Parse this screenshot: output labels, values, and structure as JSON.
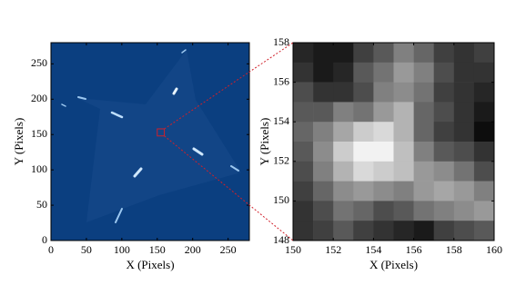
{
  "chart_data": [
    {
      "type": "image",
      "xlabel": "X (Pixels)",
      "ylabel": "Y (Pixels)",
      "color": "#0b3f80",
      "xlim": [
        0,
        280
      ],
      "ylim": [
        0,
        280
      ],
      "xticks": [
        0,
        50,
        100,
        150,
        200,
        250
      ],
      "yticks": [
        0,
        50,
        100,
        150,
        200,
        250
      ]
    },
    {
      "type": "heatmap",
      "xlabel": "X (Pixels)",
      "ylabel": "Y (Pixels)",
      "xlim": [
        150,
        160
      ],
      "ylim": [
        148,
        158
      ],
      "xticks": [
        150,
        152,
        154,
        156,
        158,
        160
      ],
      "yticks": [
        148,
        150,
        152,
        154,
        156,
        158
      ],
      "values": [
        [
          0.15,
          0.1,
          0.1,
          0.25,
          0.35,
          0.5,
          0.4,
          0.25,
          0.2,
          0.25
        ],
        [
          0.2,
          0.1,
          0.15,
          0.35,
          0.45,
          0.6,
          0.5,
          0.3,
          0.2,
          0.2
        ],
        [
          0.3,
          0.2,
          0.2,
          0.3,
          0.5,
          0.55,
          0.45,
          0.25,
          0.2,
          0.15
        ],
        [
          0.35,
          0.35,
          0.5,
          0.45,
          0.6,
          0.7,
          0.4,
          0.3,
          0.2,
          0.1
        ],
        [
          0.4,
          0.5,
          0.65,
          0.8,
          0.85,
          0.7,
          0.4,
          0.25,
          0.2,
          0.05
        ],
        [
          0.35,
          0.55,
          0.8,
          0.95,
          0.95,
          0.75,
          0.5,
          0.35,
          0.3,
          0.2
        ],
        [
          0.3,
          0.5,
          0.7,
          0.85,
          0.8,
          0.75,
          0.6,
          0.55,
          0.45,
          0.3
        ],
        [
          0.25,
          0.4,
          0.55,
          0.6,
          0.55,
          0.5,
          0.6,
          0.65,
          0.6,
          0.5
        ],
        [
          0.2,
          0.3,
          0.45,
          0.4,
          0.3,
          0.35,
          0.45,
          0.5,
          0.55,
          0.6
        ],
        [
          0.2,
          0.25,
          0.35,
          0.25,
          0.2,
          0.15,
          0.1,
          0.25,
          0.3,
          0.35
        ]
      ]
    }
  ]
}
